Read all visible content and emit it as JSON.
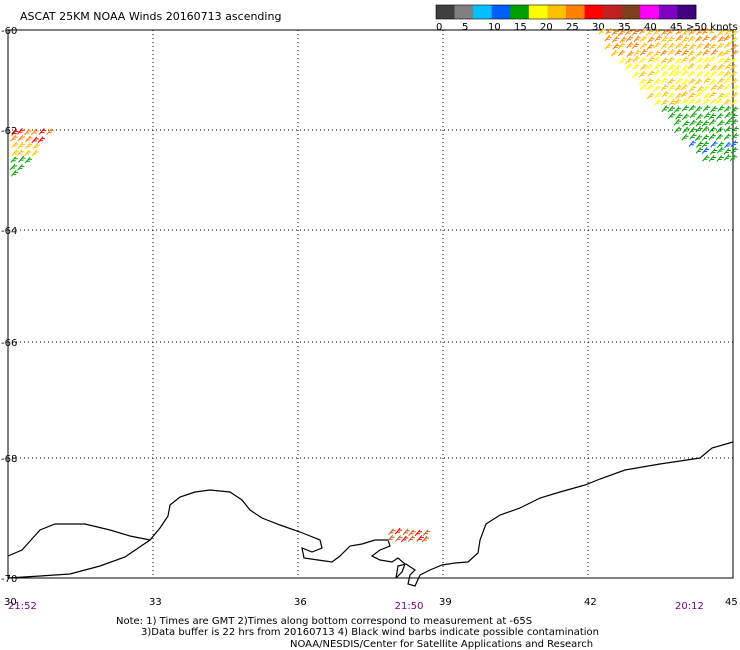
{
  "title": "ASCAT 25KM NOAA Winds 20160713 ascending",
  "legend": {
    "labels": [
      "0",
      "5",
      "10",
      "15",
      "20",
      "25",
      "30",
      "35",
      "40",
      "45",
      ">50 knots"
    ],
    "colors": [
      "#404040",
      "#808080",
      "#00c0ff",
      "#0060ff",
      "#00a000",
      "#ffff00",
      "#ffc000",
      "#ff8000",
      "#ff0000",
      "#c02020",
      "#804020",
      "#ff00ff",
      "#8000c0",
      "#400080"
    ]
  },
  "axes": {
    "lon_ticks": [
      "30",
      "33",
      "36",
      "39",
      "42",
      "45"
    ],
    "lat_ticks": [
      "-60",
      "-62",
      "-64",
      "-66",
      "-68",
      "-70"
    ],
    "lon_range": [
      30,
      45
    ],
    "lat_range": [
      -60,
      -70
    ]
  },
  "pass_times": [
    {
      "label": "21:52",
      "lon": 30.0
    },
    {
      "label": "21:50",
      "lon": 38.0
    },
    {
      "label": "20:12",
      "lon": 43.8
    }
  ],
  "notes": {
    "line1": "Note: 1) Times are GMT 2)Times along bottom correspond to measurement at -65S",
    "line2": "3)Data buffer is 22 hrs from 20160713 4) Black wind barbs indicate possible contamination",
    "line3": "NOAA/NESDIS/Center for Satellite Applications and Research"
  },
  "wind_clusters": [
    {
      "name": "northeast-swath",
      "lon": [
        42.0,
        45.0
      ],
      "lat": [
        -60.0,
        -62.7
      ],
      "dominant_colors": [
        "#ffc000",
        "#ffff00",
        "#ff8000",
        "#00a000",
        "#0060ff"
      ]
    },
    {
      "name": "west-edge-swath",
      "lon": [
        30.0,
        30.8
      ],
      "lat": [
        -62.0,
        -63.0
      ],
      "dominant_colors": [
        "#ff8000",
        "#ffc000",
        "#ff0000",
        "#00a000"
      ]
    },
    {
      "name": "coast-swath",
      "lon": [
        37.8,
        38.6
      ],
      "lat": [
        -69.2,
        -69.5
      ],
      "dominant_colors": [
        "#c06020",
        "#ff0000"
      ]
    }
  ]
}
